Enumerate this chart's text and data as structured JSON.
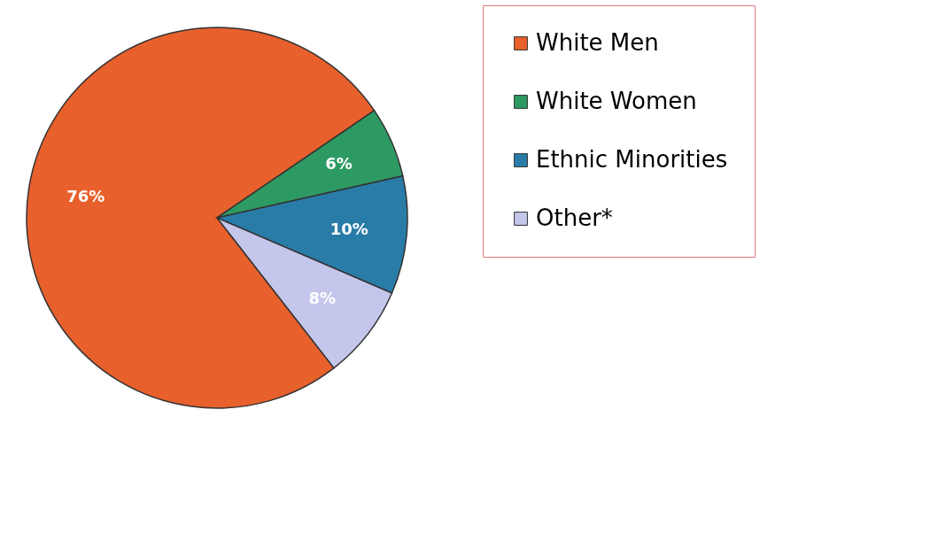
{
  "chart_data": {
    "type": "pie",
    "categories": [
      "White Men",
      "White Women",
      "Ethnic Minorities",
      "Other*"
    ],
    "values": [
      76,
      6,
      10,
      8
    ],
    "colors": [
      "#e8602c",
      "#2e9a63",
      "#2a7ca8",
      "#c4c6ec"
    ],
    "value_labels": [
      "76%",
      "6%",
      "10%",
      "8%"
    ],
    "legend": "right"
  }
}
